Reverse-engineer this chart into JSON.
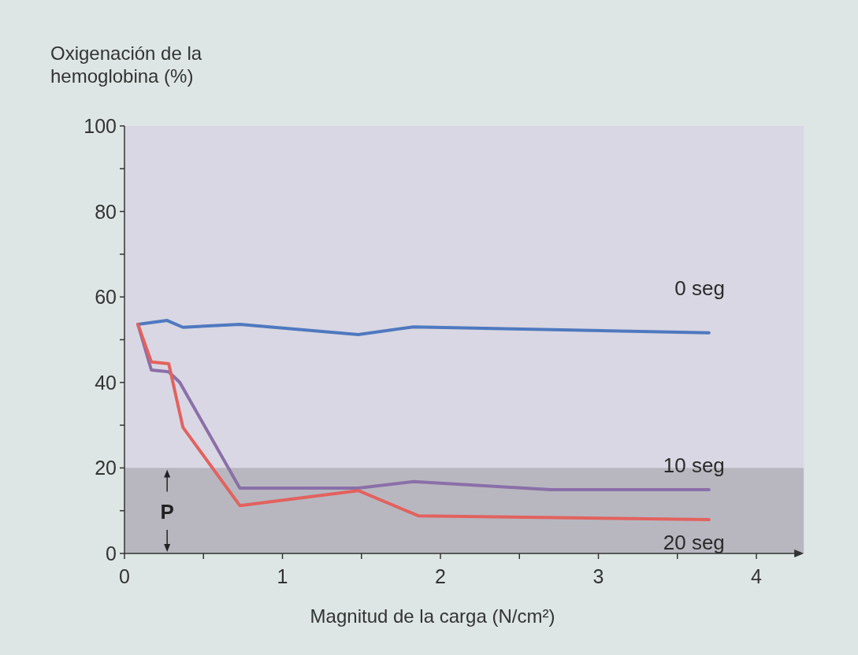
{
  "chart_data": {
    "type": "line",
    "ylabel": "Oxigenación de la\nhemoglobina (%)",
    "xlabel": "Magnitud de la carga (N/cm²)",
    "xlim": [
      0,
      4.3
    ],
    "xticks": [
      0,
      {
        "value": 0.5,
        "label": null
      },
      1,
      {
        "value": 1.5,
        "label": null
      },
      2,
      {
        "value": 2.5,
        "label": null
      },
      3,
      {
        "value": 3.5,
        "label": null
      },
      4
    ],
    "ylim": [
      0,
      100
    ],
    "yticks": [
      0,
      {
        "value": 10,
        "label": null
      },
      20,
      {
        "value": 30,
        "label": null
      },
      40,
      {
        "value": 50,
        "label": null
      },
      60,
      {
        "value": 70,
        "label": null
      },
      80,
      {
        "value": 90,
        "label": null
      },
      100
    ],
    "grid": false,
    "line_style": "solid",
    "marker": "none",
    "bands": [
      {
        "axis": "y",
        "from": 0,
        "to": 20,
        "label": "P",
        "color": "#b8b7c0"
      }
    ],
    "series": [
      {
        "name": "0 seg",
        "color": "#4f79c0",
        "x": [
          0.085,
          0.27,
          0.37,
          0.73,
          1.48,
          1.83,
          3.7
        ],
        "values": [
          53.6,
          54.5,
          52.9,
          53.6,
          51.2,
          53,
          51.6
        ]
      },
      {
        "name": "10 seg",
        "color": "#8a6fa8",
        "x": [
          0.085,
          0.17,
          0.28,
          0.35,
          0.73,
          1.48,
          1.83,
          2.7,
          3.7
        ],
        "values": [
          53.6,
          42.9,
          42.5,
          40,
          15.3,
          15.3,
          16.8,
          14.9,
          14.9
        ]
      },
      {
        "name": "20 seg",
        "color": "#e2625e",
        "x": [
          0.085,
          0.17,
          0.28,
          0.37,
          0.73,
          1.48,
          1.86,
          3.7
        ],
        "values": [
          53.6,
          44.8,
          44.4,
          29.5,
          11.2,
          14.7,
          8.8,
          7.9
        ]
      }
    ]
  }
}
